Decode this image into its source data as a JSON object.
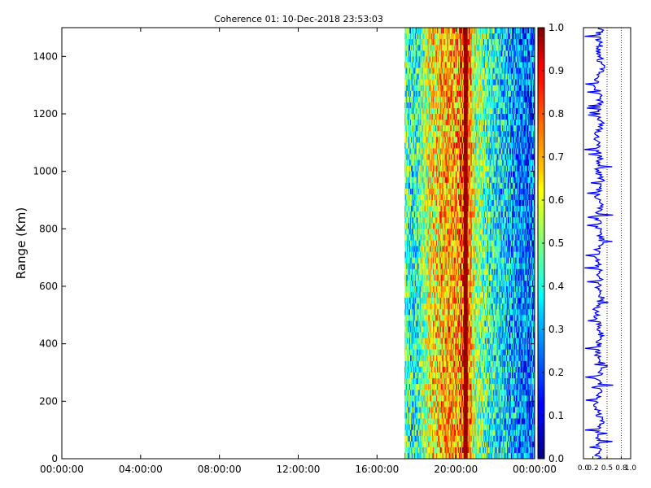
{
  "chart_data": [
    {
      "type": "heatmap",
      "title": "Coherence 01: 10-Dec-2018 23:53:03",
      "ylabel": "Range (Km)",
      "xlabel": "",
      "x_tick_labels": [
        "00:00:00",
        "04:00:00",
        "08:00:00",
        "12:00:00",
        "16:00:00",
        "20:00:00",
        "00:00:00"
      ],
      "x_range_hours": [
        0,
        24
      ],
      "y_ticks": [
        0,
        200,
        400,
        600,
        800,
        1000,
        1200,
        1400
      ],
      "ylim": [
        0,
        1500
      ],
      "data_start_hour": 17.4,
      "data_end_hour": 24,
      "colormap": "jet",
      "colorbar": {
        "ticks": [
          "0.0",
          "0.1",
          "0.2",
          "0.3",
          "0.4",
          "0.5",
          "0.6",
          "0.7",
          "0.8",
          "0.9",
          "1.0"
        ],
        "range": [
          0,
          1
        ]
      },
      "column_profile_hours": [
        17.4,
        17.6,
        17.8,
        18.0,
        18.2,
        18.4,
        18.6,
        18.8,
        19.0,
        19.2,
        19.4,
        19.6,
        19.8,
        20.0,
        20.2,
        20.4,
        20.6,
        20.8,
        21.0,
        21.2,
        21.4,
        21.6,
        21.8,
        22.0,
        22.2,
        22.4,
        22.6,
        22.8,
        23.0,
        23.2,
        23.4,
        23.6,
        23.8
      ],
      "column_profile_mean_coherence": [
        0.45,
        0.4,
        0.4,
        0.42,
        0.5,
        0.55,
        0.6,
        0.62,
        0.65,
        0.68,
        0.7,
        0.72,
        0.7,
        0.72,
        0.8,
        1.0,
        0.75,
        0.6,
        0.5,
        0.5,
        0.45,
        0.42,
        0.4,
        0.38,
        0.35,
        0.35,
        0.3,
        0.3,
        0.28,
        0.25,
        0.25,
        0.22,
        0.25
      ]
    },
    {
      "type": "line",
      "title": "",
      "x_tick_labels": [
        "0.0",
        "0.2",
        "0.5",
        "0.8",
        "1.0"
      ],
      "xlim": [
        0,
        1
      ],
      "ylim": [
        0,
        1500
      ],
      "series": [
        {
          "color": "#0000ff",
          "x": [
            0.3,
            0.35,
            0.28,
            0.4,
            0.32,
            0.25,
            0.38,
            0.3,
            0.45,
            0.28,
            0.33,
            0.36,
            0.3,
            0.25,
            0.4,
            0.32,
            0.35,
            0.3,
            0.28,
            0.38,
            0.33,
            0.3,
            0.36,
            0.28,
            0.42,
            0.3,
            0.34,
            0.3,
            0.26,
            0.38,
            0.32,
            0.36,
            0.3,
            0.28,
            0.4,
            0.33,
            0.3,
            0.35,
            0.29,
            0.38
          ],
          "y": [
            0,
            40,
            80,
            120,
            160,
            200,
            240,
            280,
            320,
            360,
            400,
            440,
            480,
            520,
            560,
            600,
            640,
            680,
            720,
            760,
            800,
            840,
            880,
            920,
            960,
            1000,
            1040,
            1080,
            1120,
            1160,
            1200,
            1240,
            1280,
            1320,
            1360,
            1400,
            1420,
            1440,
            1470,
            1500
          ]
        }
      ],
      "reference_lines_x": [
        0.5,
        0.8
      ]
    }
  ]
}
